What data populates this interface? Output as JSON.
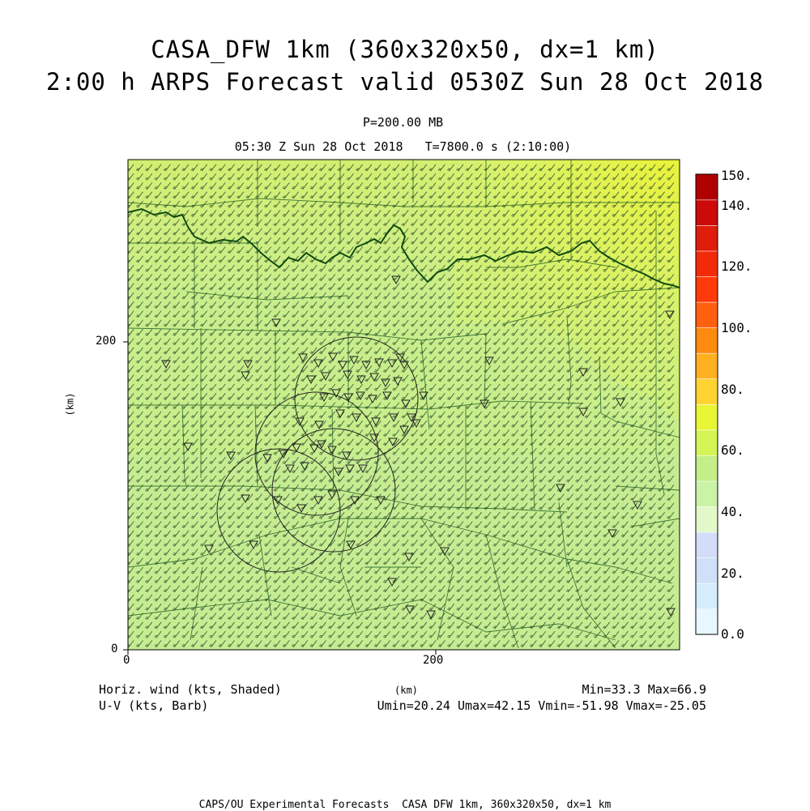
{
  "header": {
    "title_line1": "CASA_DFW 1km (360x320x50, dx=1 km)",
    "title_line2": "2:00 h ARPS Forecast valid 0530Z Sun 28 Oct 2018",
    "pressure_level": "P=200.00 MB",
    "time_line": "05:30 Z Sun 28 Oct 2018   T=7800.0 s (2:10:00)"
  },
  "axes": {
    "x_label": "(km)",
    "y_label": "(km)",
    "x_ticks": [
      "0",
      "200"
    ],
    "y_ticks": [
      "0",
      "200"
    ]
  },
  "colorbar": {
    "labels": [
      "0.0",
      "20.",
      "40.",
      "60.",
      "80.",
      "100.",
      "120.",
      "140.",
      "150."
    ],
    "colors": [
      "#e8f6ff",
      "#d4ecfc",
      "#cfe0f8",
      "#d4dcf8",
      "#e2f8c8",
      "#caf3a8",
      "#c4ee88",
      "#d4f455",
      "#e8f535",
      "#ffd430",
      "#ffb020",
      "#ff8a10",
      "#ff6010",
      "#ff3a0a",
      "#f22a0a",
      "#e01c0a",
      "#cc0a0a",
      "#b00000"
    ]
  },
  "footer": {
    "field_shaded": "Horiz. wind (kts, Shaded)",
    "field_barb": "U-V (kts, Barb)",
    "minmax": "Min=33.3 Max=66.9",
    "uv_range": "Umin=20.24 Umax=42.15 Vmin=-51.98 Vmax=-25.05",
    "credit": "CAPS/OU Experimental Forecasts  CASA DFW 1km, 360x320x50, dx=1 km"
  },
  "map_colors": {
    "base": "#c8ee8c",
    "south": "#c6ec92",
    "north": "#cfee7a",
    "northeast": "#e2f248",
    "east_band": "#d2f07a",
    "barb": "#2d4a2d",
    "county_line": "#1f5a1f",
    "state_line": "#0f4a0f",
    "radar_ring": "#222222"
  }
}
